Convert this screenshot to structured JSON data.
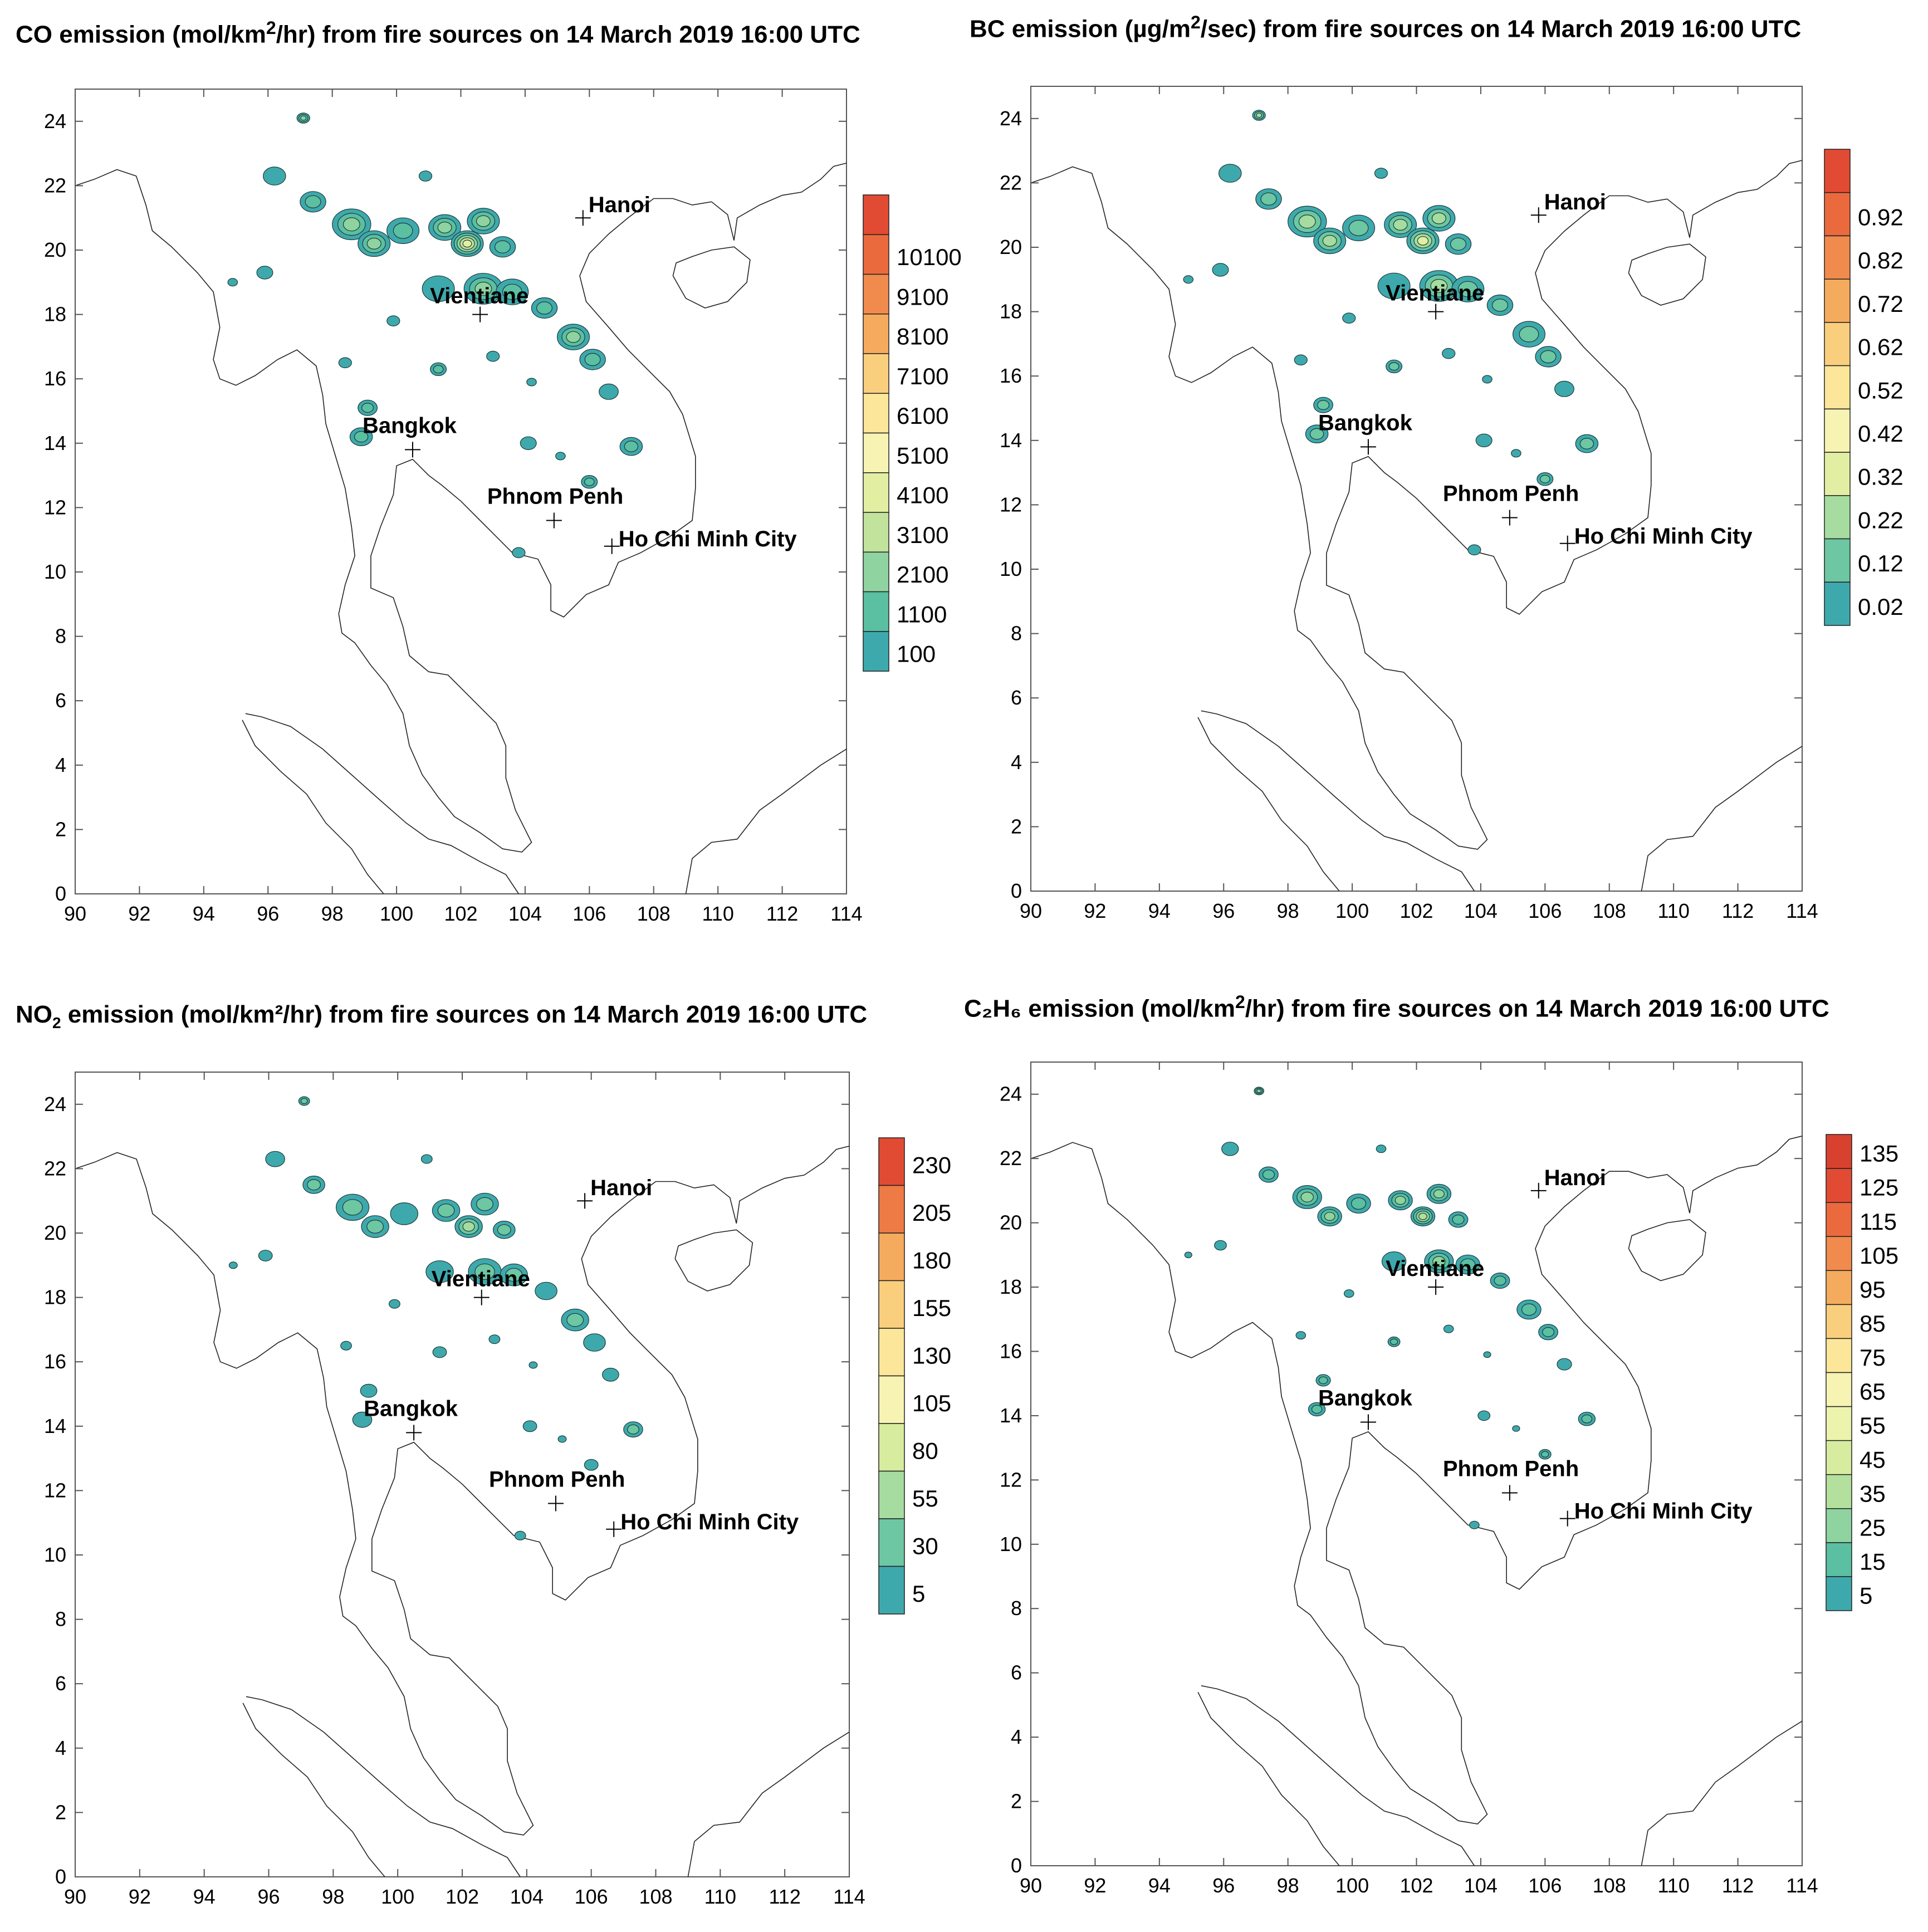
{
  "panels": [
    {
      "id": "co",
      "title_prefix": "CO emission (mol/km",
      "title_sup": "2",
      "title_sub": "",
      "title_suffix": "/hr) from fire sources on 14 March 2019 16:00 UTC",
      "legend_labels": [
        "10100",
        "9100",
        "8100",
        "7100",
        "6100",
        "5100",
        "4100",
        "3100",
        "2100",
        "1100",
        "100"
      ],
      "legend_colors": [
        "#e24b33",
        "#ea6a3e",
        "#f08a4d",
        "#f5ab5e",
        "#f9cf7e",
        "#fbe69a",
        "#f7f3b3",
        "#e2efa3",
        "#c2e39b",
        "#8fd3a0",
        "#5bbfa1",
        "#3ea9ad"
      ]
    },
    {
      "id": "bc",
      "title_prefix": "BC emission (µg/m",
      "title_sup": "2",
      "title_sub": "",
      "title_suffix": "/sec) from fire sources on 14 March 2019 16:00 UTC",
      "legend_labels": [
        "0.92",
        "0.82",
        "0.72",
        "0.62",
        "0.52",
        "0.42",
        "0.32",
        "0.22",
        "0.12",
        "0.02"
      ],
      "legend_colors": [
        "#e24b33",
        "#ea6a3e",
        "#f08a4d",
        "#f5ab5e",
        "#f9cf7e",
        "#fbe69a",
        "#f7f3b3",
        "#e2efa3",
        "#a6dca0",
        "#6cc7a2",
        "#3ea9ad"
      ]
    },
    {
      "id": "no2",
      "title_prefix": "NO",
      "title_sup": "",
      "title_sub": "2",
      "title_suffix": " emission (mol/km²/hr) from fire sources on 14 March 2019 16:00 UTC",
      "legend_labels": [
        "230",
        "205",
        "180",
        "155",
        "130",
        "105",
        "80",
        "55",
        "30",
        "5"
      ],
      "legend_colors": [
        "#e24b33",
        "#ee7a45",
        "#f5ab5e",
        "#f9cf7e",
        "#fbe69a",
        "#f7f3b3",
        "#d7ec9f",
        "#a6dca0",
        "#6cc7a2",
        "#3ea9ad"
      ]
    },
    {
      "id": "c2h6",
      "title_prefix": "C₂H₆ emission (mol/km",
      "title_sup": "2",
      "title_sub": "",
      "title_suffix": "/hr) from fire sources on 14 March 2019 16:00 UTC",
      "legend_labels": [
        "135",
        "125",
        "115",
        "105",
        "95",
        "85",
        "75",
        "65",
        "55",
        "45",
        "35",
        "25",
        "15",
        "5"
      ],
      "legend_colors": [
        "#d9412f",
        "#e24b33",
        "#ea6a3e",
        "#f08a4d",
        "#f5ab5e",
        "#f9cf7e",
        "#fbe69a",
        "#f7f3b3",
        "#ecf3ad",
        "#d7ec9f",
        "#b4e09d",
        "#8fd3a0",
        "#5bbfa1",
        "#3ea9ad"
      ]
    }
  ],
  "map": {
    "xticks": [
      "90",
      "92",
      "94",
      "96",
      "98",
      "100",
      "102",
      "104",
      "106",
      "108",
      "110",
      "112",
      "114"
    ],
    "yticks": [
      "0",
      "2",
      "4",
      "6",
      "8",
      "10",
      "12",
      "14",
      "16",
      "18",
      "20",
      "22",
      "24"
    ],
    "x_range": [
      90,
      114
    ],
    "y_range": [
      0,
      25
    ],
    "cities": [
      {
        "name": "Hanoi",
        "lon": 105.8,
        "lat": 21.0
      },
      {
        "name": "Vientiane",
        "lon": 102.6,
        "lat": 18.0
      },
      {
        "name": "Bangkok",
        "lon": 100.5,
        "lat": 13.8
      },
      {
        "name": "Phnom Penh",
        "lon": 104.9,
        "lat": 11.6
      },
      {
        "name": "Ho Chi Minh City",
        "lon": 106.7,
        "lat": 10.8
      }
    ]
  }
}
